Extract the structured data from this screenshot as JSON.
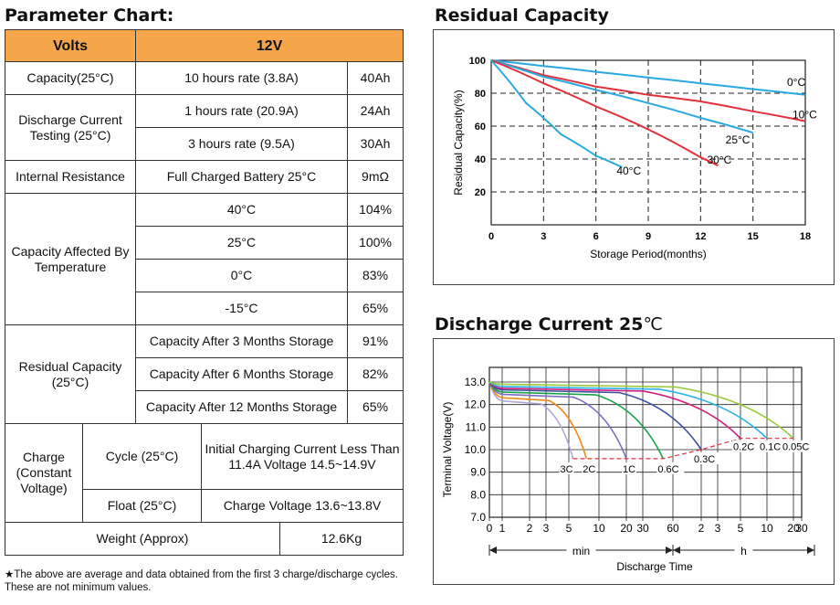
{
  "param": {
    "title": "Parameter Chart:",
    "volts_label": "Volts",
    "volts_value": "12V",
    "capacity_label": "Capacity(25°C)",
    "capacity_rate": "10 hours rate (3.8A)",
    "capacity_value": "40Ah",
    "discharge_label": "Discharge Current Testing (25°C)",
    "discharge_rows": [
      {
        "rate": "1 hours rate (20.9A)",
        "value": "24Ah"
      },
      {
        "rate": "3 hours rate (9.5A)",
        "value": "30Ah"
      }
    ],
    "ir_label": "Internal Resistance",
    "ir_cond": "Full Charged Battery 25°C",
    "ir_value": "9mΩ",
    "temp_label": "Capacity Affected By Temperature",
    "temp_rows": [
      {
        "t": "40°C",
        "v": "104%"
      },
      {
        "t": "25°C",
        "v": "100%"
      },
      {
        "t": "0°C",
        "v": "83%"
      },
      {
        "t": "-15°C",
        "v": "65%"
      }
    ],
    "resid_label": "Residual Capacity (25°C)",
    "resid_rows": [
      {
        "t": "Capacity After 3 Months Storage",
        "v": "91%"
      },
      {
        "t": "Capacity After 6 Months Storage",
        "v": "82%"
      },
      {
        "t": "Capacity After 12 Months Storage",
        "v": "65%"
      }
    ],
    "charge_label": "Charge (Constant Voltage)",
    "cycle_label": "Cycle (25°C)",
    "cycle_value": "Initial Charging Current Less Than 11.4A Voltage 14.5~14.9V",
    "float_label": "Float (25°C)",
    "float_value": "Charge Voltage 13.6~13.8V",
    "weight_label": "Weight (Approx)",
    "weight_value": "12.6Kg",
    "footnote": "★The above are average and data obtained from the first 3 charge/discharge cycles. These are not minimum values."
  },
  "residual_title": "Residual Capacity",
  "discharge_title_bold": "Discharge Current 25",
  "discharge_title_unit": "℃",
  "chart_data": [
    {
      "type": "line",
      "title": "Residual Capacity",
      "xlabel": "Storage Period(months)",
      "ylabel": "Residual Capacity(%)",
      "xlim": [
        0,
        18
      ],
      "ylim": [
        0,
        100
      ],
      "xticks": [
        0,
        3,
        6,
        9,
        12,
        15,
        18
      ],
      "yticks": [
        20,
        40,
        60,
        80,
        100
      ],
      "grid": "dashed",
      "series": [
        {
          "name": "0°C",
          "color": "#2aa9e0",
          "x": [
            0,
            3,
            6,
            9,
            12,
            15,
            18
          ],
          "y": [
            100,
            96.5,
            93,
            89.5,
            86,
            82.5,
            79
          ]
        },
        {
          "name": "10°C",
          "color": "#e0303a",
          "x": [
            0,
            3,
            6,
            9,
            12,
            15,
            18
          ],
          "y": [
            100,
            91,
            84,
            79,
            75,
            69,
            63
          ]
        },
        {
          "name": "25°C",
          "color": "#2aa9e0",
          "x": [
            0,
            3,
            6,
            9,
            12,
            15
          ],
          "y": [
            100,
            90,
            82,
            74,
            65,
            56
          ]
        },
        {
          "name": "30°C",
          "color": "#e0303a",
          "x": [
            0,
            3,
            6,
            9,
            12,
            13
          ],
          "y": [
            100,
            86,
            72,
            58,
            41,
            36
          ]
        },
        {
          "name": "40°C",
          "color": "#2aa9e0",
          "x": [
            0,
            2,
            4,
            6,
            7.5
          ],
          "y": [
            100,
            74,
            55,
            42,
            35
          ]
        }
      ]
    },
    {
      "type": "line",
      "title": "Discharge Current 25℃",
      "xlabel": "Discharge Time",
      "ylabel": "Terminal Voltage(V)",
      "ylim": [
        7.0,
        13.0
      ],
      "yticks": [
        "7.0",
        "8.0",
        "9.0",
        "10.0",
        "11.0",
        "12.0",
        "13.0"
      ],
      "xtick_labels": [
        "0",
        "1",
        "2",
        "3",
        "5",
        "10",
        "20",
        "30",
        "60",
        "2",
        "3",
        "5",
        "10",
        "20",
        "30"
      ],
      "time_units": [
        "min",
        "h"
      ],
      "series": [
        {
          "name": "3C",
          "color": "#b0a8d8",
          "end_min": 5.5,
          "start_v": 12.15,
          "end_v": 9.6
        },
        {
          "name": "2C",
          "color": "#f08a1e",
          "end_min": 7.5,
          "start_v": 12.3,
          "end_v": 9.6
        },
        {
          "name": "1C",
          "color": "#7d6cc0",
          "end_min": 20,
          "start_v": 12.45,
          "end_v": 9.6
        },
        {
          "name": "0.6C",
          "color": "#1aa34a",
          "end_min": 48,
          "start_v": 12.55,
          "end_v": 9.6
        },
        {
          "name": "0.3C",
          "color": "#3d4fa0",
          "end_min": 120,
          "start_v": 12.65,
          "end_v": 10.0
        },
        {
          "name": "0.2C",
          "color": "#d0207c",
          "end_min": 300,
          "start_v": 12.72,
          "end_v": 10.5
        },
        {
          "name": "0.1C",
          "color": "#28b4e8",
          "end_min": 600,
          "start_v": 12.8,
          "end_v": 10.5
        },
        {
          "name": "0.05C",
          "color": "#9cc93a",
          "end_min": 1200,
          "start_v": 12.9,
          "end_v": 10.5
        }
      ]
    }
  ]
}
